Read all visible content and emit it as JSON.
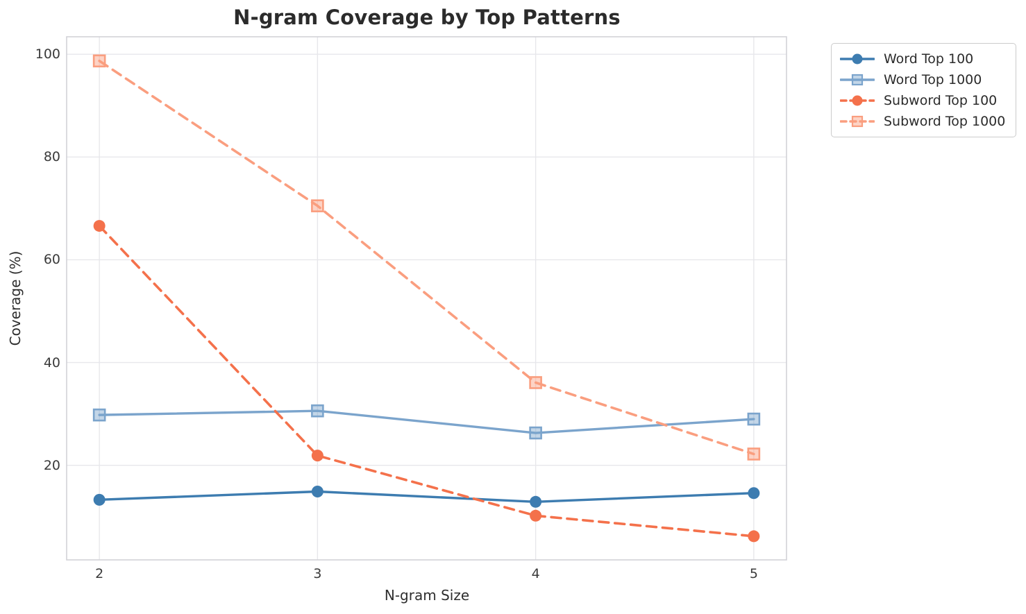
{
  "chart_data": {
    "type": "line",
    "title": "N-gram Coverage by Top Patterns",
    "xlabel": "N-gram Size",
    "ylabel": "Coverage (%)",
    "x": [
      2,
      3,
      4,
      5
    ],
    "xticks": [
      2,
      3,
      4,
      5
    ],
    "yticks": [
      20,
      40,
      60,
      80,
      100
    ],
    "xlim": [
      1.85,
      5.15
    ],
    "ylim": [
      1.6,
      103.4
    ],
    "grid": true,
    "legend_position": "outside-top-right",
    "grid_color": "#e7e7eb",
    "border_color": "#d2d2d7",
    "series": [
      {
        "name": "Word Top 100",
        "color": "#3D7CB0",
        "line_style": "solid",
        "marker": "circle",
        "values": [
          13.3,
          14.9,
          12.9,
          14.6
        ]
      },
      {
        "name": "Word Top 1000",
        "color": "#7BA4CC",
        "line_style": "solid",
        "marker": "square",
        "values": [
          29.8,
          30.6,
          26.3,
          29.0
        ]
      },
      {
        "name": "Subword Top 100",
        "color": "#F4714B",
        "line_style": "dashed",
        "marker": "circle",
        "values": [
          66.6,
          21.9,
          10.2,
          6.2
        ]
      },
      {
        "name": "Subword Top 1000",
        "color": "#FA9E7F",
        "line_style": "dashed",
        "marker": "square",
        "values": [
          98.7,
          70.5,
          36.1,
          22.2
        ]
      }
    ]
  }
}
